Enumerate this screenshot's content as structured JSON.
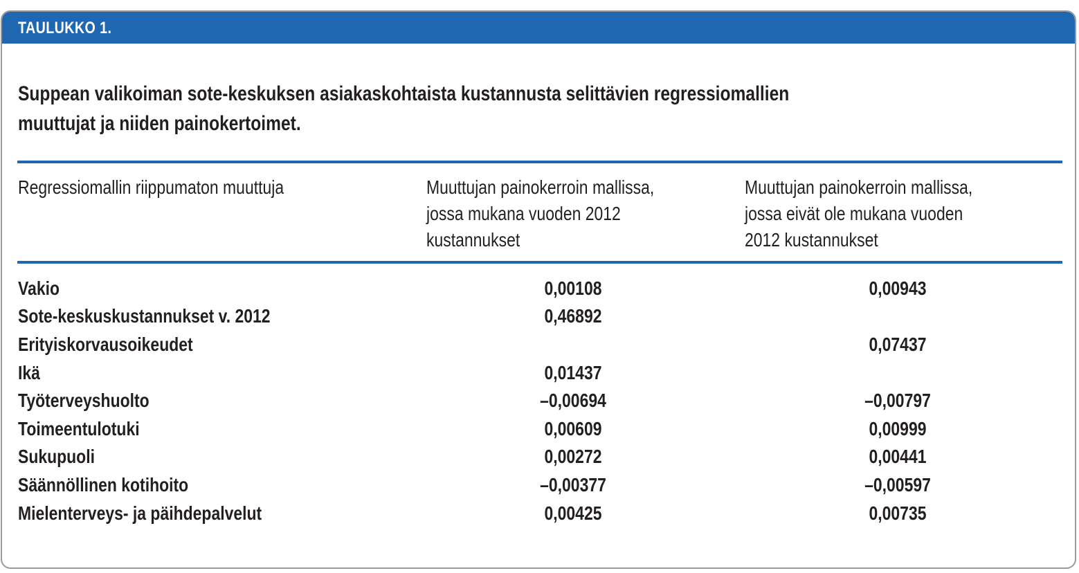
{
  "header": {
    "label": "TAULUKKO 1."
  },
  "caption": {
    "line1": "Suppean valikoiman sote-keskuksen asiakaskohtaista kustannusta selittävien regressiomallien",
    "line2": "muuttujat ja niiden painokertoimet."
  },
  "columns": [
    {
      "lines": [
        "Regressiomallin riippumaton muuttuja"
      ]
    },
    {
      "lines": [
        "Muuttujan painokerroin mallissa,",
        "jossa mukana vuoden 2012",
        "kustannukset"
      ]
    },
    {
      "lines": [
        "Muuttujan painokerroin mallissa,",
        "jossa eivät ole mukana vuoden",
        "2012 kustannukset"
      ]
    }
  ],
  "rows": [
    {
      "label": "Vakio",
      "with_2012": "0,00108",
      "without_2012": "0,00943"
    },
    {
      "label": "Sote-keskuskustannukset v. 2012",
      "with_2012": "0,46892",
      "without_2012": ""
    },
    {
      "label": "Erityiskorvausoikeudet",
      "with_2012": "",
      "without_2012": "0,07437"
    },
    {
      "label": "Ikä",
      "with_2012": "0,01437",
      "without_2012": ""
    },
    {
      "label": "Työterveyshuolto",
      "with_2012": "–0,00694",
      "without_2012": "–0,00797"
    },
    {
      "label": "Toimeentulotuki",
      "with_2012": "0,00609",
      "without_2012": "0,00999"
    },
    {
      "label": "Sukupuoli",
      "with_2012": "0,00272",
      "without_2012": "0,00441"
    },
    {
      "label": "Säännöllinen kotihoito",
      "with_2012": "–0,00377",
      "without_2012": "–0,00597"
    },
    {
      "label": "Mielenterveys- ja päihdepalvelut",
      "with_2012": "0,00425",
      "without_2012": "0,00735"
    }
  ]
}
